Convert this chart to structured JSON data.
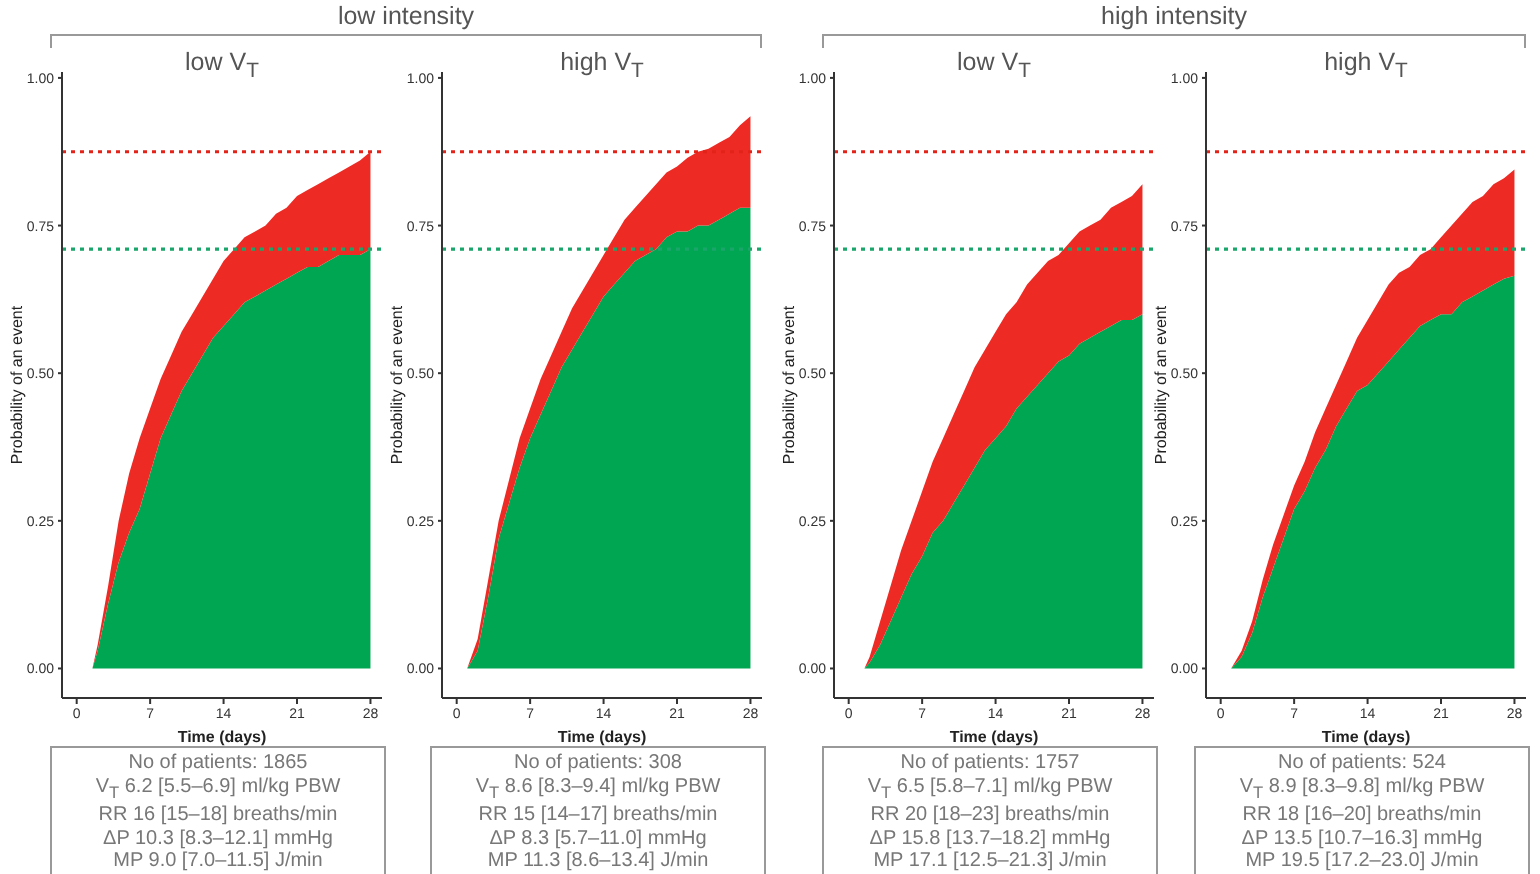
{
  "chart_data": [
    {
      "type": "area",
      "stacked": true,
      "subtitle": "low intensity",
      "title": "low V$_{T}$",
      "xlabel": "Time (days)",
      "ylabel": "Probability of an event",
      "x": [
        1.5,
        2,
        3,
        4,
        5,
        6,
        7,
        8,
        9,
        10,
        11,
        12,
        13,
        14,
        15,
        16,
        17,
        18,
        19,
        20,
        21,
        22,
        23,
        24,
        25,
        26,
        27,
        28
      ],
      "series": [
        {
          "color": "#00a651",
          "values": [
            0,
            0.03,
            0.11,
            0.18,
            0.23,
            0.27,
            0.33,
            0.39,
            0.43,
            0.47,
            0.5,
            0.53,
            0.56,
            0.58,
            0.6,
            0.62,
            0.63,
            0.64,
            0.65,
            0.66,
            0.67,
            0.68,
            0.68,
            0.69,
            0.7,
            0.7,
            0.7,
            0.71
          ]
        },
        {
          "color": "#ee2a24",
          "values": [
            0,
            0.01,
            0.03,
            0.07,
            0.1,
            0.12,
            0.11,
            0.1,
            0.1,
            0.1,
            0.1,
            0.1,
            0.1,
            0.11,
            0.11,
            0.11,
            0.11,
            0.11,
            0.12,
            0.12,
            0.13,
            0.13,
            0.14,
            0.14,
            0.14,
            0.15,
            0.16,
            0.165
          ]
        }
      ],
      "xlim": [
        -1.4,
        29.1
      ],
      "xticks": [
        0,
        7,
        14,
        21,
        28
      ],
      "ylim": [
        -0.05,
        1.01
      ],
      "yticks": [
        {
          "value": 0,
          "label": "0.00"
        },
        {
          "value": 0.25,
          "label": "0.25"
        },
        {
          "value": 0.5,
          "label": "0.50"
        },
        {
          "value": 0.75,
          "label": "0.75"
        },
        {
          "value": 1,
          "label": "1.00"
        }
      ],
      "ref_lines": [
        {
          "axis": "y",
          "value": 0.875,
          "color": "#e2231a",
          "line_style": "dotted"
        },
        {
          "axis": "y",
          "value": 0.71,
          "color": "#1aa56a",
          "line_style": "dotted"
        }
      ],
      "annotations": [
        "No of patients: 1865",
        "V$_{T}$ 6.2 [5.5–6.9] ml/kg PBW",
        "RR 16 [15–18] breaths/min",
        "ΔP 10.3 [8.3–12.1] mmHg",
        "MP 9.0 [7.0–11.5] J/min"
      ]
    },
    {
      "type": "area",
      "stacked": true,
      "title": "high V$_{T}$",
      "xlabel": "Time (days)",
      "ylabel": "Probability of an event",
      "x": [
        1,
        2,
        3,
        4,
        5,
        6,
        7,
        8,
        9,
        10,
        11,
        12,
        13,
        14,
        15,
        16,
        17,
        18,
        19,
        20,
        21,
        22,
        23,
        24,
        25,
        26,
        27,
        28
      ],
      "series": [
        {
          "color": "#00a651",
          "values": [
            0,
            0.03,
            0.12,
            0.22,
            0.28,
            0.34,
            0.39,
            0.43,
            0.47,
            0.51,
            0.54,
            0.57,
            0.6,
            0.63,
            0.65,
            0.67,
            0.69,
            0.7,
            0.71,
            0.73,
            0.74,
            0.74,
            0.75,
            0.75,
            0.76,
            0.77,
            0.78,
            0.78
          ]
        },
        {
          "color": "#ee2a24",
          "values": [
            0,
            0.02,
            0.03,
            0.03,
            0.04,
            0.05,
            0.05,
            0.06,
            0.06,
            0.06,
            0.07,
            0.07,
            0.07,
            0.07,
            0.08,
            0.09,
            0.09,
            0.1,
            0.11,
            0.11,
            0.11,
            0.125,
            0.125,
            0.13,
            0.13,
            0.13,
            0.14,
            0.155
          ]
        }
      ],
      "xlim": [
        -1.4,
        29.1
      ],
      "xticks": [
        0,
        7,
        14,
        21,
        28
      ],
      "ylim": [
        -0.05,
        1.01
      ],
      "yticks": [
        {
          "value": 0,
          "label": "0.00"
        },
        {
          "value": 0.25,
          "label": "0.25"
        },
        {
          "value": 0.5,
          "label": "0.50"
        },
        {
          "value": 0.75,
          "label": "0.75"
        },
        {
          "value": 1,
          "label": "1.00"
        }
      ],
      "ref_lines": [
        {
          "axis": "y",
          "value": 0.875,
          "color": "#e2231a",
          "line_style": "dotted"
        },
        {
          "axis": "y",
          "value": 0.71,
          "color": "#1aa56a",
          "line_style": "dotted"
        }
      ],
      "annotations": [
        "No of patients: 308",
        "V$_{T}$ 8.6 [8.3–9.4] ml/kg PBW",
        "RR 15 [14–17] breaths/min",
        "ΔP 8.3 [5.7–11.0] mmHg",
        "MP 11.3 [8.6–13.4] J/min"
      ]
    },
    {
      "type": "area",
      "stacked": true,
      "subtitle": "high intensity",
      "title": "low V$_{T}$",
      "xlabel": "Time (days)",
      "ylabel": "Probability of an event",
      "x": [
        1.5,
        2,
        3,
        4,
        5,
        6,
        7,
        8,
        9,
        10,
        11,
        12,
        13,
        14,
        15,
        16,
        17,
        18,
        19,
        20,
        21,
        22,
        23,
        24,
        25,
        26,
        27,
        28
      ],
      "series": [
        {
          "color": "#00a651",
          "values": [
            0,
            0.01,
            0.04,
            0.08,
            0.12,
            0.16,
            0.19,
            0.23,
            0.25,
            0.28,
            0.31,
            0.34,
            0.37,
            0.39,
            0.41,
            0.44,
            0.46,
            0.48,
            0.5,
            0.52,
            0.53,
            0.55,
            0.56,
            0.57,
            0.58,
            0.59,
            0.59,
            0.6
          ]
        },
        {
          "color": "#ee2a24",
          "values": [
            0,
            0.01,
            0.04,
            0.06,
            0.08,
            0.09,
            0.11,
            0.12,
            0.14,
            0.15,
            0.16,
            0.17,
            0.17,
            0.18,
            0.19,
            0.18,
            0.19,
            0.19,
            0.19,
            0.18,
            0.19,
            0.19,
            0.19,
            0.19,
            0.2,
            0.2,
            0.21,
            0.22
          ]
        }
      ],
      "xlim": [
        -1.4,
        29.1
      ],
      "xticks": [
        0,
        7,
        14,
        21,
        28
      ],
      "ylim": [
        -0.05,
        1.01
      ],
      "yticks": [
        {
          "value": 0,
          "label": "0.00"
        },
        {
          "value": 0.25,
          "label": "0.25"
        },
        {
          "value": 0.5,
          "label": "0.50"
        },
        {
          "value": 0.75,
          "label": "0.75"
        },
        {
          "value": 1,
          "label": "1.00"
        }
      ],
      "ref_lines": [
        {
          "axis": "y",
          "value": 0.875,
          "color": "#e2231a",
          "line_style": "dotted"
        },
        {
          "axis": "y",
          "value": 0.71,
          "color": "#1aa56a",
          "line_style": "dotted"
        }
      ],
      "annotations": [
        "No of patients: 1757",
        "V$_{T}$ 6.5 [5.8–7.1] ml/kg PBW",
        "RR 20 [18–23] breaths/min",
        "ΔP 15.8 [13.7–18.2] mmHg",
        "MP 17.1 [12.5–21.3] J/min"
      ]
    },
    {
      "type": "area",
      "stacked": true,
      "title": "high V$_{T}$",
      "xlabel": "Time (days)",
      "ylabel": "Probability of an event",
      "x": [
        1,
        2,
        3,
        4,
        5,
        6,
        7,
        8,
        9,
        10,
        11,
        12,
        13,
        14,
        15,
        16,
        17,
        18,
        19,
        20,
        21,
        22,
        23,
        24,
        25,
        26,
        27,
        28
      ],
      "series": [
        {
          "color": "#00a651",
          "values": [
            0,
            0.02,
            0.06,
            0.12,
            0.17,
            0.22,
            0.27,
            0.3,
            0.34,
            0.37,
            0.41,
            0.44,
            0.47,
            0.48,
            0.5,
            0.52,
            0.54,
            0.56,
            0.58,
            0.59,
            0.6,
            0.6,
            0.62,
            0.63,
            0.64,
            0.65,
            0.66,
            0.665
          ]
        },
        {
          "color": "#ee2a24",
          "values": [
            0,
            0.01,
            0.02,
            0.03,
            0.04,
            0.04,
            0.04,
            0.05,
            0.06,
            0.07,
            0.07,
            0.08,
            0.09,
            0.11,
            0.12,
            0.13,
            0.13,
            0.12,
            0.12,
            0.12,
            0.13,
            0.15,
            0.15,
            0.16,
            0.16,
            0.17,
            0.17,
            0.18
          ]
        }
      ],
      "xlim": [
        -1.4,
        29.1
      ],
      "xticks": [
        0,
        7,
        14,
        21,
        28
      ],
      "ylim": [
        -0.05,
        1.01
      ],
      "yticks": [
        {
          "value": 0,
          "label": "0.00"
        },
        {
          "value": 0.25,
          "label": "0.25"
        },
        {
          "value": 0.5,
          "label": "0.50"
        },
        {
          "value": 0.75,
          "label": "0.75"
        },
        {
          "value": 1,
          "label": "1.00"
        }
      ],
      "ref_lines": [
        {
          "axis": "y",
          "value": 0.875,
          "color": "#e2231a",
          "line_style": "dotted"
        },
        {
          "axis": "y",
          "value": 0.71,
          "color": "#1aa56a",
          "line_style": "dotted"
        }
      ],
      "annotations": [
        "No of patients: 524",
        "V$_{T}$ 8.9 [8.3–9.8] ml/kg PBW",
        "RR 18 [16–20] breaths/min",
        "ΔP 13.5 [10.7–16.3] mmHg",
        "MP 19.5 [17.2–23.0] J/min"
      ]
    }
  ]
}
